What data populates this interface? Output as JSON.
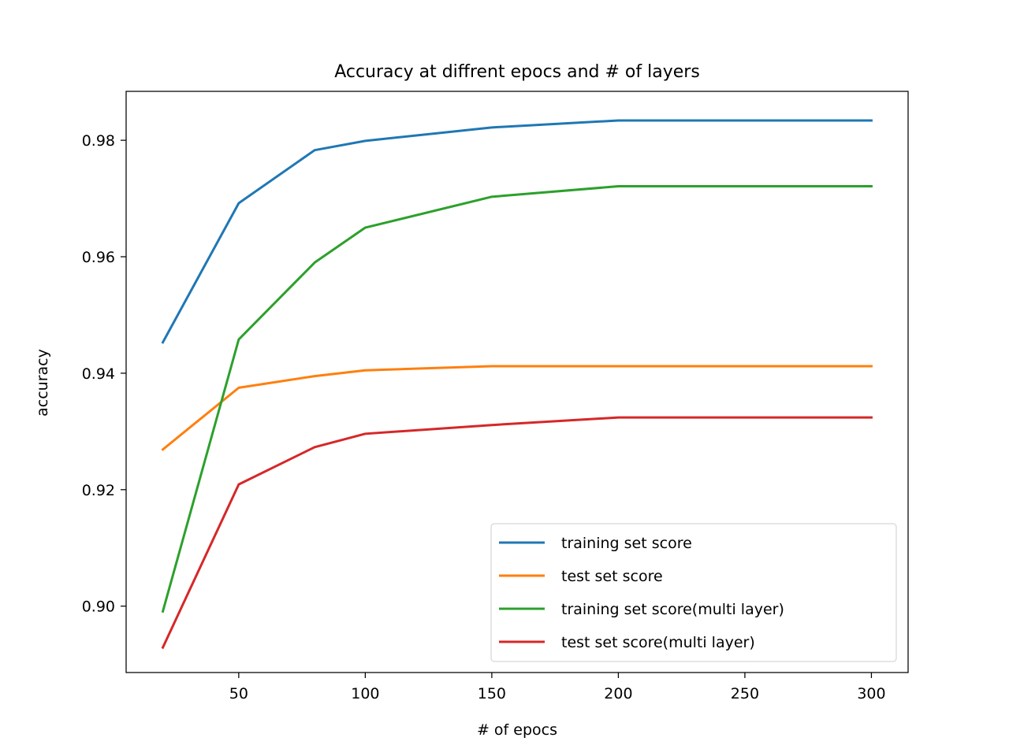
{
  "chart_data": {
    "type": "line",
    "title": "Accuracy at diffrent epocs and # of layers",
    "xlabel": "# of epocs",
    "ylabel": "accuracy",
    "x": [
      20,
      50,
      80,
      100,
      150,
      200,
      300
    ],
    "xlim": [
      5.5,
      314.5
    ],
    "ylim": [
      0.8886,
      0.9884
    ],
    "xticks": [
      50,
      100,
      150,
      200,
      250,
      300
    ],
    "xtick_labels": [
      "50",
      "100",
      "150",
      "200",
      "250",
      "300"
    ],
    "yticks": [
      0.9,
      0.92,
      0.94,
      0.96,
      0.98
    ],
    "ytick_labels": [
      "0.90",
      "0.92",
      "0.94",
      "0.96",
      "0.98"
    ],
    "grid": false,
    "legend_position": "lower-right",
    "series": [
      {
        "name": "training set score",
        "color": "#1f77b4",
        "values": [
          0.9453,
          0.9692,
          0.9783,
          0.9799,
          0.9822,
          0.9834,
          0.9834
        ]
      },
      {
        "name": "test set score",
        "color": "#ff7f0e",
        "values": [
          0.9269,
          0.9375,
          0.9395,
          0.9405,
          0.9412,
          0.9412,
          0.9412
        ]
      },
      {
        "name": "training set score(multi layer)",
        "color": "#2ca02c",
        "values": [
          0.8991,
          0.9458,
          0.959,
          0.965,
          0.9703,
          0.9721,
          0.9721
        ]
      },
      {
        "name": "test set score(multi layer)",
        "color": "#d62728",
        "values": [
          0.8929,
          0.9209,
          0.9273,
          0.9296,
          0.9311,
          0.9324,
          0.9324
        ]
      }
    ]
  }
}
